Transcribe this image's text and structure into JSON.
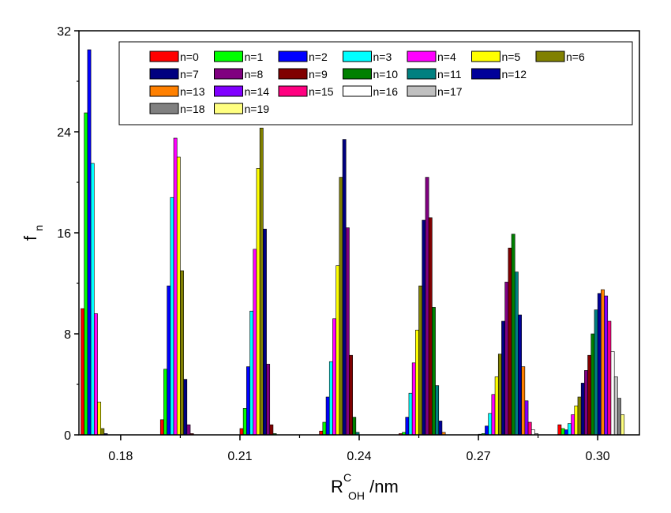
{
  "chart_data": {
    "type": "bar",
    "xlabel": {
      "main": "R",
      "sup": "C",
      "sub": "OH",
      "unit": "/nm"
    },
    "ylabel": {
      "main": "f",
      "sub": "n"
    },
    "xlim": [
      0.1695,
      0.3105
    ],
    "ylim": [
      0,
      32
    ],
    "xticks": [
      0.18,
      0.21,
      0.24,
      0.27,
      0.3
    ],
    "xtick_labels": [
      "0.18",
      "0.21",
      "0.24",
      "0.27",
      "0.30"
    ],
    "yticks": [
      0,
      8,
      16,
      24,
      32
    ],
    "ytick_labels": [
      "0",
      "8",
      "16",
      "24",
      "32"
    ],
    "groups": [
      0.17,
      0.19,
      0.21,
      0.23,
      0.25,
      0.27,
      0.29
    ],
    "series": [
      {
        "name": "n=0",
        "color": "#ff0000",
        "values": [
          10.0,
          1.2,
          0.5,
          0.3,
          0.1,
          0.05,
          0.8
        ]
      },
      {
        "name": "n=1",
        "color": "#00ff00",
        "values": [
          25.5,
          5.2,
          2.1,
          1.0,
          0.2,
          0.1,
          0.5
        ]
      },
      {
        "name": "n=2",
        "color": "#0000ff",
        "values": [
          30.5,
          11.8,
          5.4,
          3.0,
          1.4,
          0.7,
          0.4
        ]
      },
      {
        "name": "n=3",
        "color": "#00ffff",
        "values": [
          21.5,
          18.8,
          9.8,
          5.8,
          3.3,
          1.7,
          0.9
        ]
      },
      {
        "name": "n=4",
        "color": "#ff00ff",
        "values": [
          9.6,
          23.5,
          14.7,
          9.2,
          5.7,
          3.2,
          1.6
        ]
      },
      {
        "name": "n=5",
        "color": "#ffff00",
        "values": [
          2.6,
          22.0,
          21.1,
          13.4,
          8.3,
          4.6,
          2.3
        ]
      },
      {
        "name": "n=6",
        "color": "#808000",
        "values": [
          0.5,
          13.0,
          24.3,
          20.4,
          11.8,
          6.4,
          3.0
        ]
      },
      {
        "name": "n=7",
        "color": "#000080",
        "values": [
          0.1,
          4.4,
          16.3,
          23.4,
          17.0,
          9.0,
          4.1
        ]
      },
      {
        "name": "n=8",
        "color": "#800080",
        "values": [
          0.0,
          0.8,
          5.6,
          16.4,
          20.4,
          12.1,
          5.1
        ]
      },
      {
        "name": "n=9",
        "color": "#800000",
        "values": [
          0.0,
          0.1,
          0.8,
          6.3,
          17.2,
          14.8,
          6.3
        ]
      },
      {
        "name": "n=10",
        "color": "#008000",
        "values": [
          0.0,
          0.0,
          0.1,
          1.4,
          10.1,
          15.9,
          8.0
        ]
      },
      {
        "name": "n=11",
        "color": "#008080",
        "values": [
          0.0,
          0.0,
          0.0,
          0.2,
          3.9,
          12.9,
          9.9
        ]
      },
      {
        "name": "n=12",
        "color": "#000099",
        "values": [
          0.0,
          0.0,
          0.0,
          0.0,
          1.1,
          9.5,
          11.2
        ]
      },
      {
        "name": "n=13",
        "color": "#ff8000",
        "values": [
          0.0,
          0.0,
          0.0,
          0.0,
          0.2,
          5.4,
          11.5
        ]
      },
      {
        "name": "n=14",
        "color": "#8000ff",
        "values": [
          0.0,
          0.0,
          0.0,
          0.0,
          0.0,
          2.7,
          11.0
        ]
      },
      {
        "name": "n=15",
        "color": "#ff0080",
        "values": [
          0.0,
          0.0,
          0.0,
          0.0,
          0.0,
          1.0,
          9.0
        ]
      },
      {
        "name": "n=16",
        "color": "#ffffff",
        "values": [
          0.0,
          0.0,
          0.0,
          0.0,
          0.0,
          0.4,
          6.6
        ]
      },
      {
        "name": "n=17",
        "color": "#c0c0c0",
        "values": [
          0.0,
          0.0,
          0.0,
          0.0,
          0.0,
          0.1,
          4.6
        ]
      },
      {
        "name": "n=18",
        "color": "#808080",
        "values": [
          0.0,
          0.0,
          0.0,
          0.0,
          0.0,
          0.0,
          2.9
        ]
      },
      {
        "name": "n=19",
        "color": "#ffff80",
        "values": [
          0.0,
          0.0,
          0.0,
          0.0,
          0.0,
          0.0,
          1.6
        ]
      }
    ],
    "legend": {
      "placement": "top-right",
      "rows": [
        [
          0,
          1,
          2,
          3,
          4,
          5,
          6
        ],
        [
          7,
          8,
          9,
          10,
          11,
          12
        ],
        [
          13,
          14,
          15,
          16,
          17
        ],
        [
          18,
          19
        ]
      ]
    },
    "grid": false
  }
}
